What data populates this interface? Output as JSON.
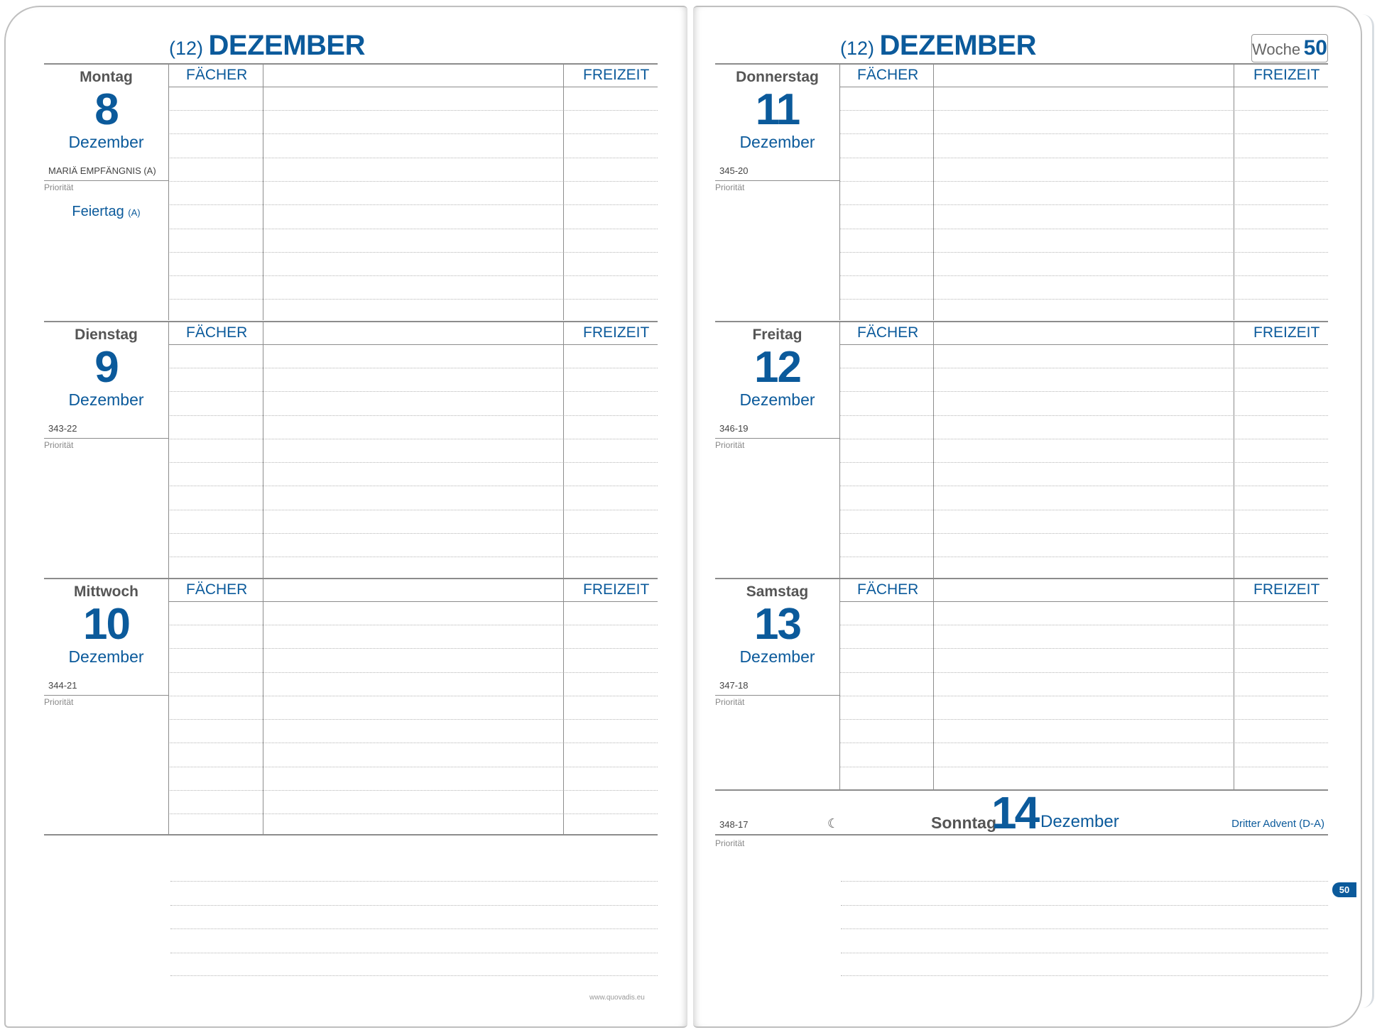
{
  "header": {
    "month_number": "(12)",
    "month_name": "DEZEMBER"
  },
  "week_box": {
    "label": "Woche",
    "number": "50"
  },
  "columns": {
    "subjects": "FÄCHER",
    "leisure": "FREIZEIT"
  },
  "priority_label": "Priorität",
  "days": [
    {
      "weekday": "Montag",
      "day": "8",
      "month": "Dezember",
      "code": "MARIÄ EMPFÄNGNIS (A)",
      "note": "Feiertag",
      "note_suffix": "(A)"
    },
    {
      "weekday": "Dienstag",
      "day": "9",
      "month": "Dezember",
      "code": "343-22"
    },
    {
      "weekday": "Mittwoch",
      "day": "10",
      "month": "Dezember",
      "code": "344-21"
    },
    {
      "weekday": "Donnerstag",
      "day": "11",
      "month": "Dezember",
      "code": "345-20"
    },
    {
      "weekday": "Freitag",
      "day": "12",
      "month": "Dezember",
      "code": "346-19"
    },
    {
      "weekday": "Samstag",
      "day": "13",
      "month": "Dezember",
      "code": "347-18"
    }
  ],
  "sunday": {
    "code": "348-17",
    "moon_icon": "☾",
    "weekday": "Sonntag",
    "day": "14",
    "month": "Dezember",
    "event": "Dritter Advent (D-A)"
  },
  "page_tab": "50",
  "footer_url": "www.quovadis.eu",
  "colors": {
    "accent": "#0b5a9b",
    "rule": "#8c8c8c"
  }
}
